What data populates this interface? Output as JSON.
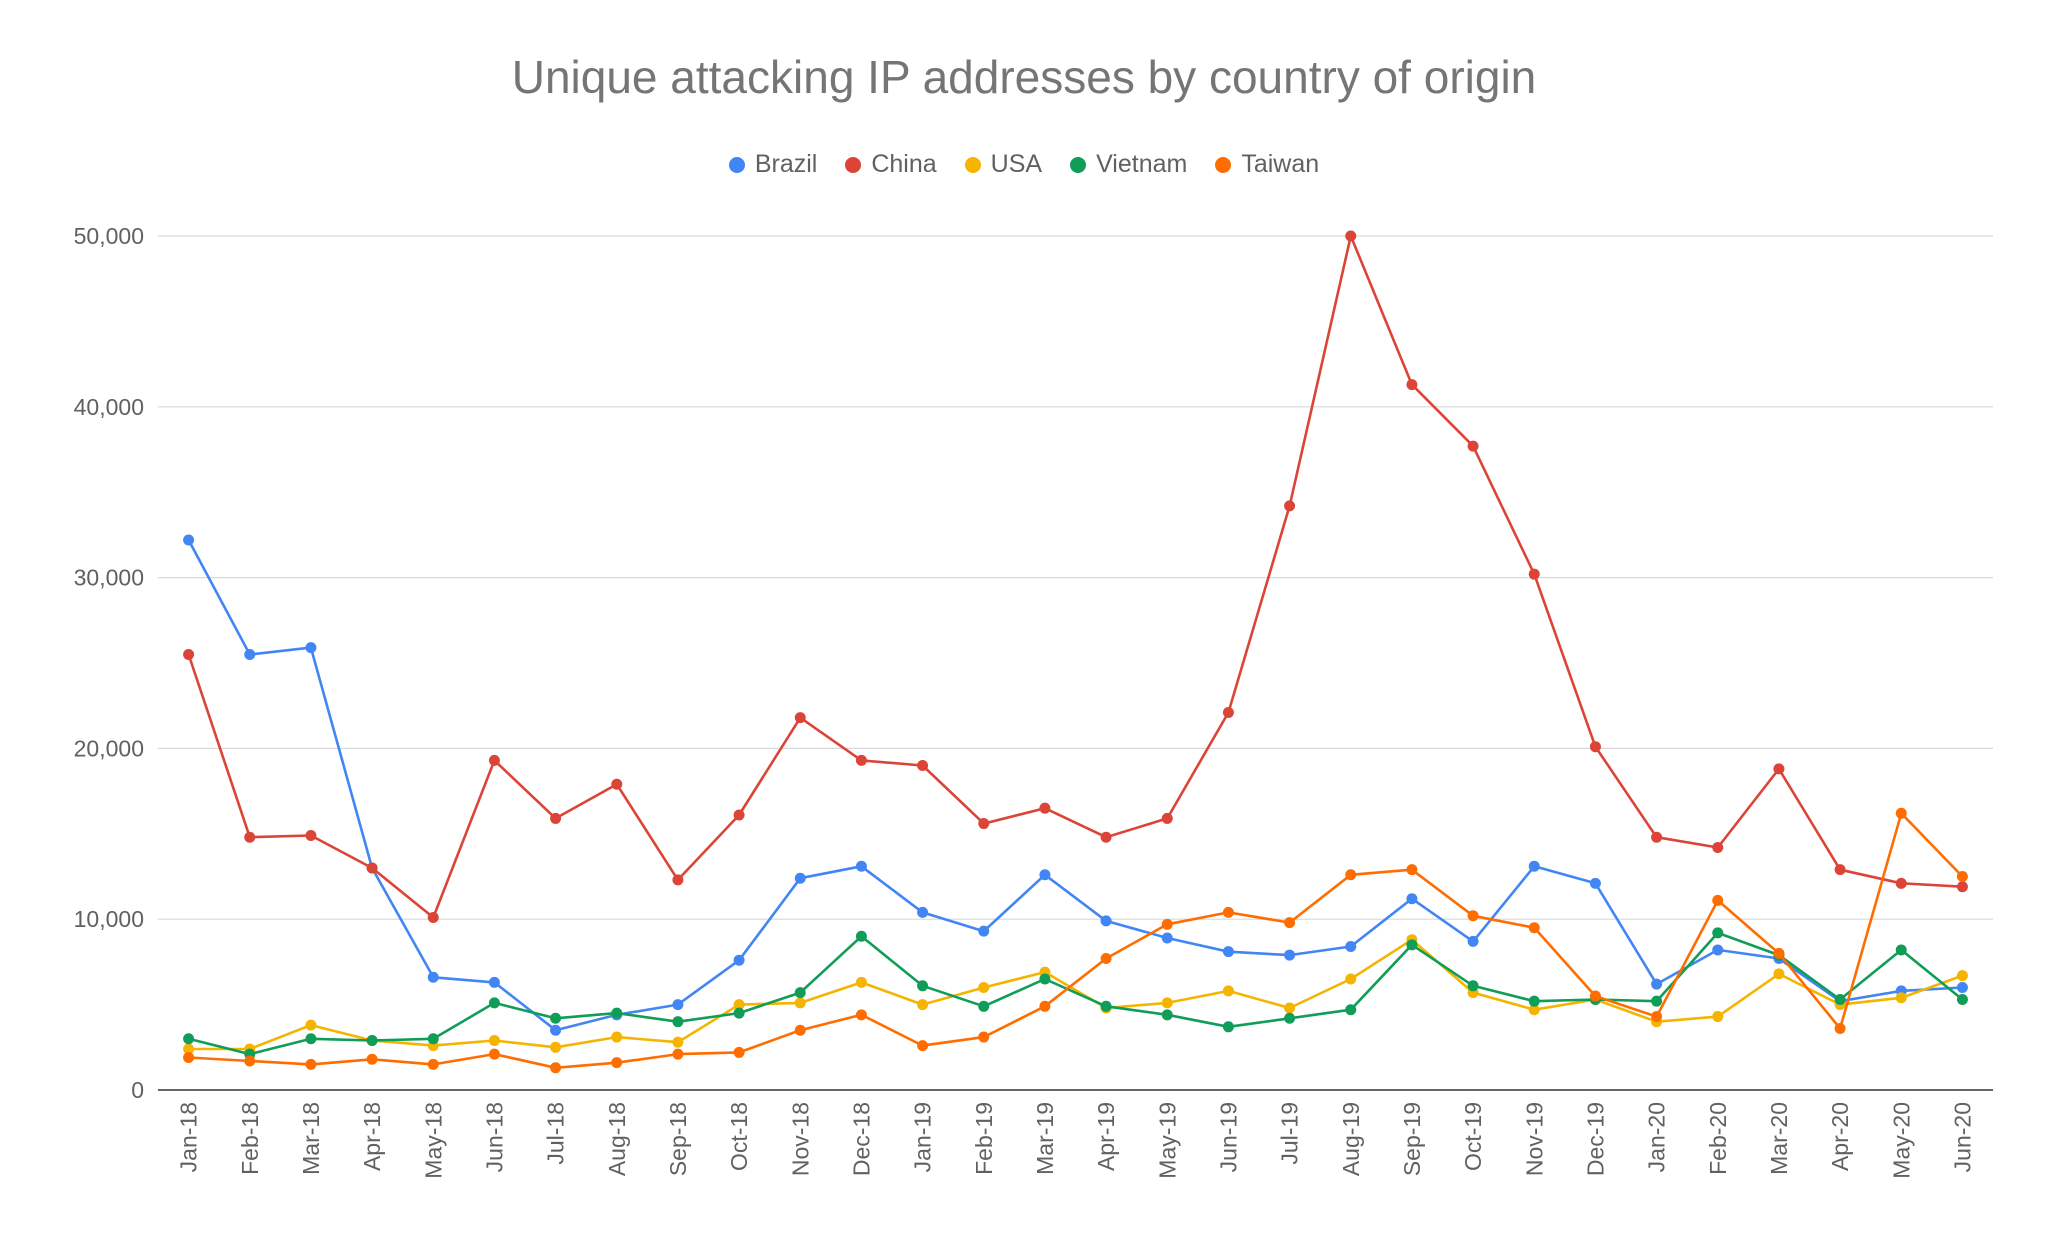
{
  "chart_data": {
    "type": "line",
    "title": "Unique attacking IP addresses by country of origin",
    "xlabel": "",
    "ylabel": "",
    "ylim": [
      0,
      50000
    ],
    "yticks": [
      0,
      10000,
      20000,
      30000,
      40000,
      50000
    ],
    "ytick_labels": [
      "0",
      "10,000",
      "20,000",
      "30,000",
      "40,000",
      "50,000"
    ],
    "grid": true,
    "legend_position": "top-center",
    "categories": [
      "Jan-18",
      "Feb-18",
      "Mar-18",
      "Apr-18",
      "May-18",
      "Jun-18",
      "Jul-18",
      "Aug-18",
      "Sep-18",
      "Oct-18",
      "Nov-18",
      "Dec-18",
      "Jan-19",
      "Feb-19",
      "Mar-19",
      "Apr-19",
      "May-19",
      "Jun-19",
      "Jul-19",
      "Aug-19",
      "Sep-19",
      "Oct-19",
      "Nov-19",
      "Dec-19",
      "Jan-20",
      "Feb-20",
      "Mar-20",
      "Apr-20",
      "May-20",
      "Jun-20"
    ],
    "series": [
      {
        "name": "Brazil",
        "color": "#4285F4",
        "values": [
          32200,
          25500,
          25900,
          13000,
          6600,
          6300,
          3500,
          4400,
          5000,
          7600,
          12400,
          13100,
          10400,
          9300,
          12600,
          9900,
          8900,
          8100,
          7900,
          8400,
          11200,
          8700,
          13100,
          12100,
          6200,
          8200,
          7700,
          5200,
          5800,
          6000
        ]
      },
      {
        "name": "China",
        "color": "#DB4437",
        "values": [
          25500,
          14800,
          14900,
          13000,
          10100,
          19300,
          15900,
          17900,
          12300,
          16100,
          21800,
          19300,
          19000,
          15600,
          16500,
          14800,
          15900,
          22100,
          34200,
          50000,
          41300,
          37700,
          30200,
          20100,
          14800,
          14200,
          18800,
          12900,
          12100,
          11900
        ]
      },
      {
        "name": "USA",
        "color": "#F4B400",
        "values": [
          2400,
          2400,
          3800,
          2900,
          2600,
          2900,
          2500,
          3100,
          2800,
          5000,
          5100,
          6300,
          5000,
          6000,
          6900,
          4800,
          5100,
          5800,
          4800,
          6500,
          8800,
          5700,
          4700,
          5300,
          4000,
          4300,
          6800,
          5000,
          5400,
          6700
        ]
      },
      {
        "name": "Vietnam",
        "color": "#0F9D58",
        "values": [
          3000,
          2100,
          3000,
          2900,
          3000,
          5100,
          4200,
          4500,
          4000,
          4500,
          5700,
          9000,
          6100,
          4900,
          6500,
          4900,
          4400,
          3700,
          4200,
          4700,
          8500,
          6100,
          5200,
          5300,
          5200,
          9200,
          7900,
          5300,
          8200,
          5300
        ]
      },
      {
        "name": "Taiwan",
        "color": "#FF6D01",
        "values": [
          1900,
          1700,
          1500,
          1800,
          1500,
          2100,
          1300,
          1600,
          2100,
          2200,
          3500,
          4400,
          2600,
          3100,
          4900,
          7700,
          9700,
          10400,
          9800,
          12600,
          12900,
          10200,
          9500,
          5500,
          4300,
          11100,
          8000,
          3600,
          16200,
          12500
        ]
      }
    ]
  }
}
